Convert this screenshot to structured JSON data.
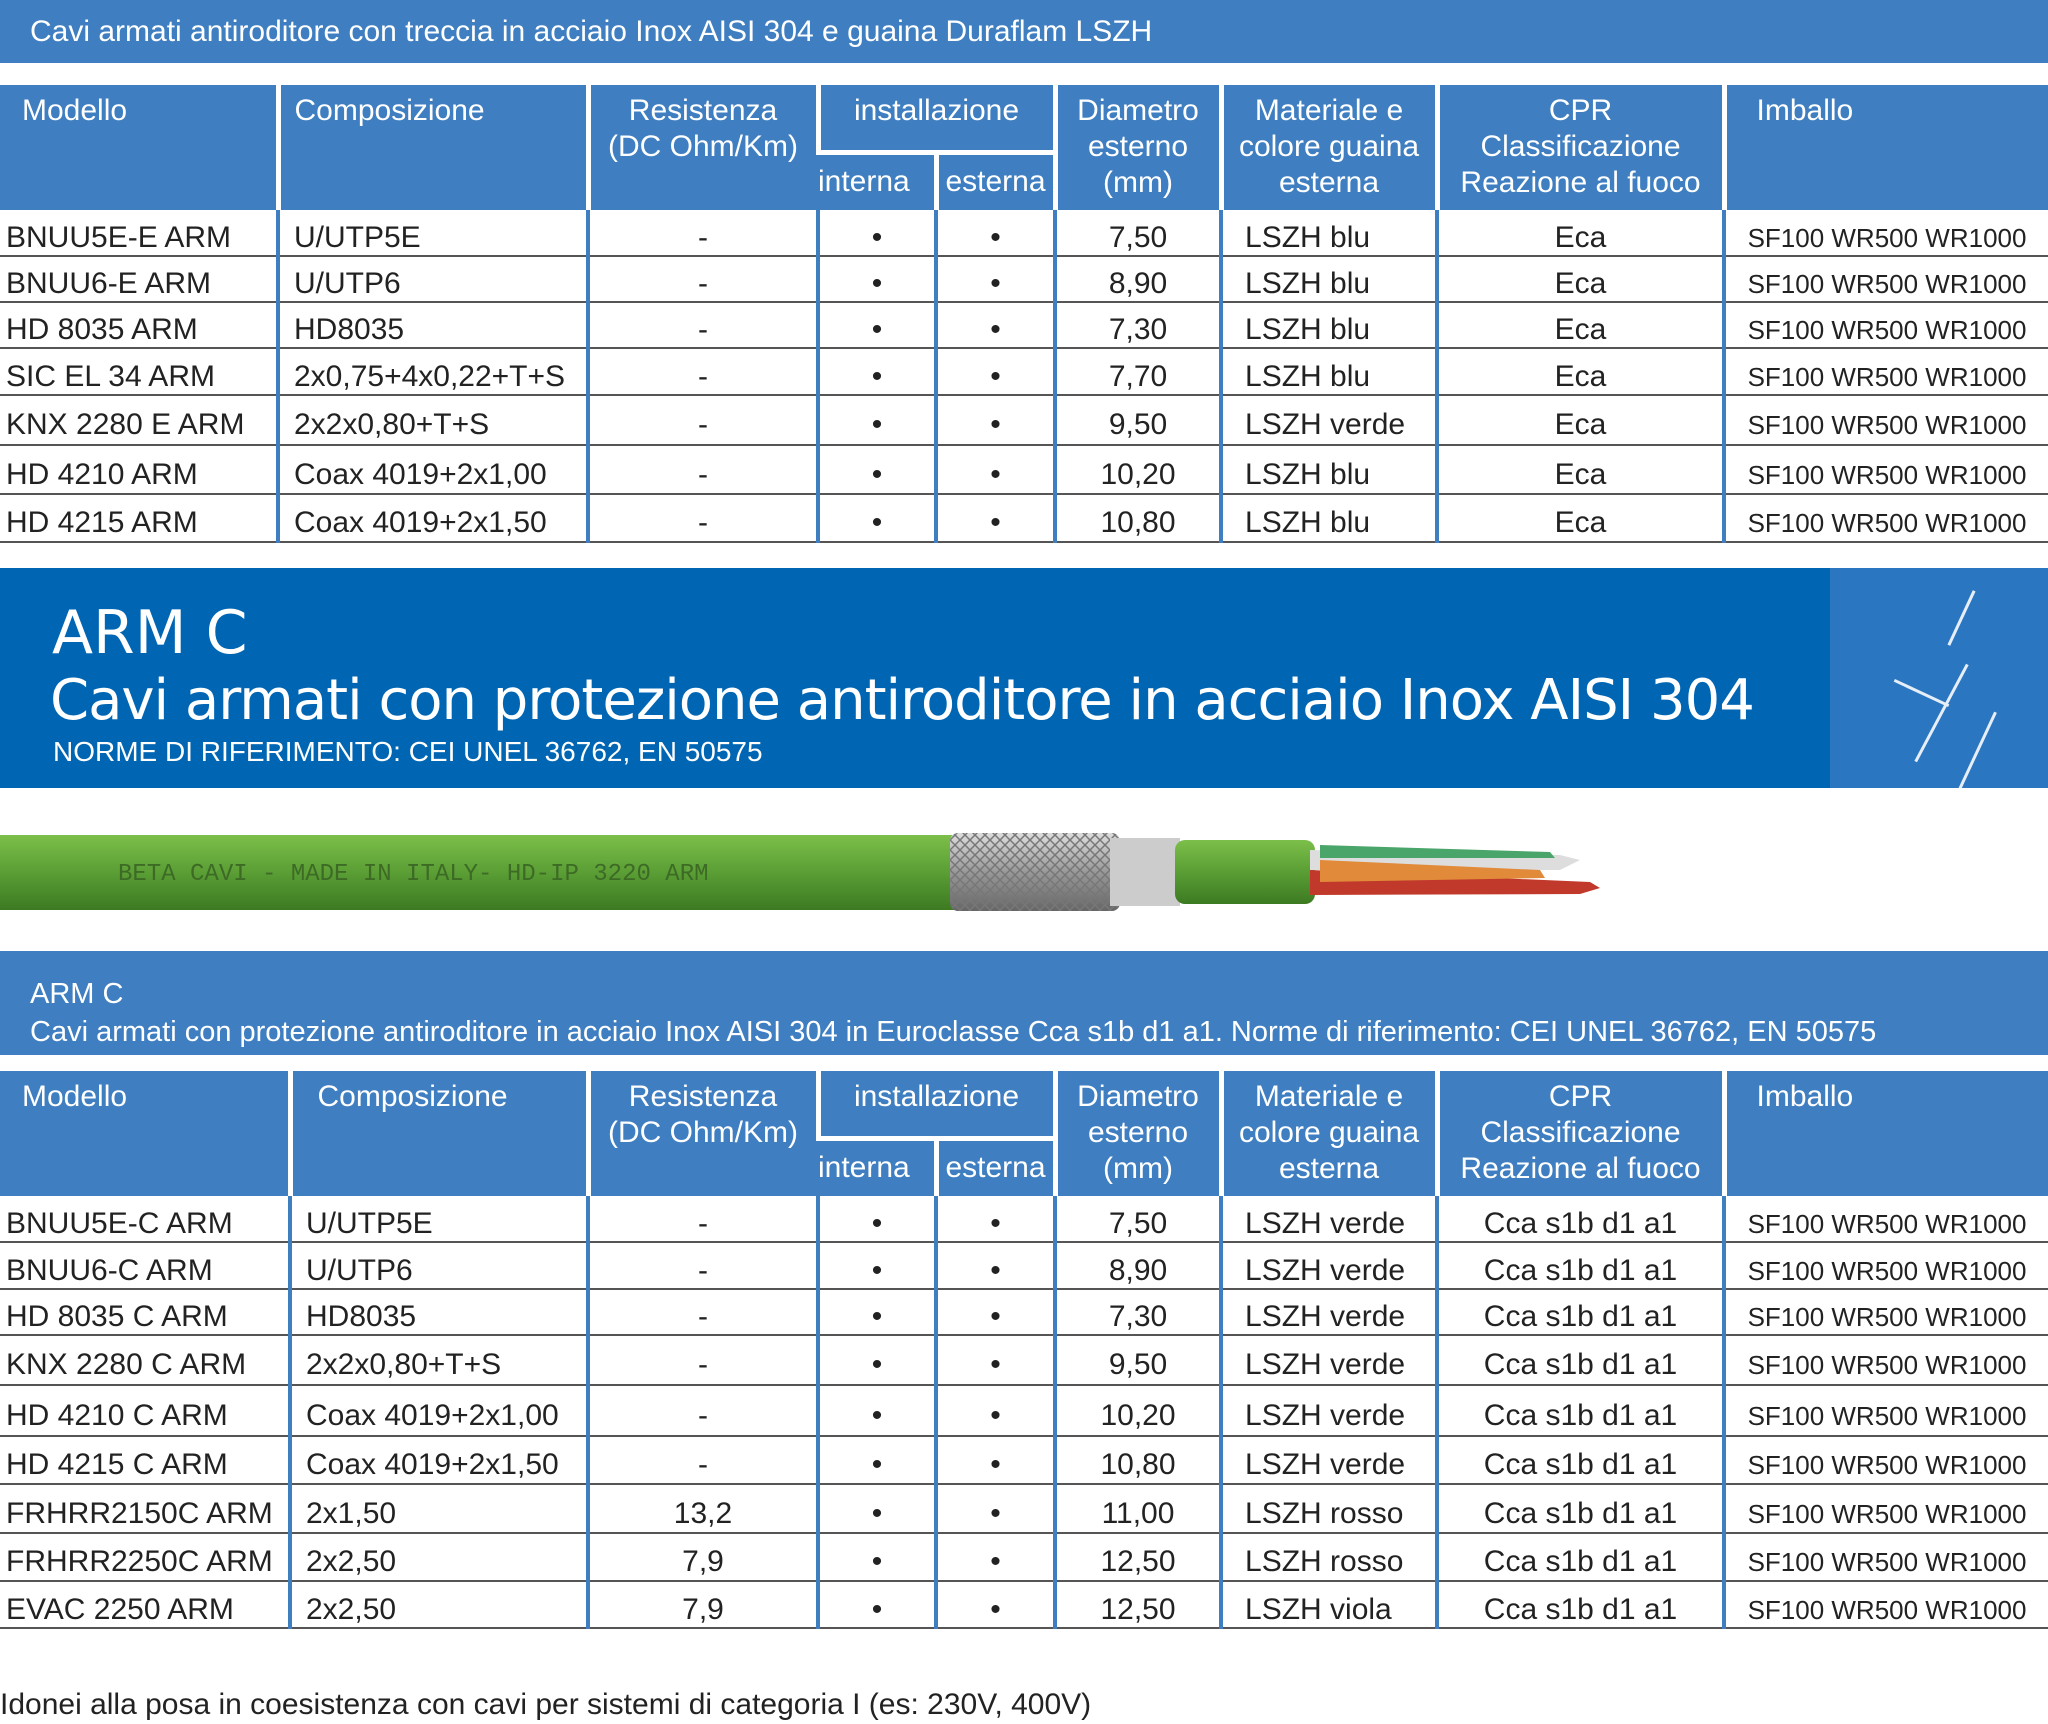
{
  "section1": {
    "title": "Cavi armati antiroditore con treccia in acciaio Inox AISI 304 e guaina Duraflam LSZH",
    "rows": [
      [
        "BNUU5E-E ARM",
        "U/UTP5E",
        "-",
        "•",
        "•",
        "7,50",
        "LSZH blu",
        "Eca",
        "SF100 WR500 WR1000"
      ],
      [
        "BNUU6-E ARM",
        "U/UTP6",
        "-",
        "•",
        "•",
        "8,90",
        "LSZH blu",
        "Eca",
        "SF100 WR500 WR1000"
      ],
      [
        "HD 8035 ARM",
        "HD8035",
        "-",
        "•",
        "•",
        "7,30",
        "LSZH blu",
        "Eca",
        "SF100 WR500 WR1000"
      ],
      [
        "SIC EL 34 ARM",
        "2x0,75+4x0,22+T+S",
        "-",
        "•",
        "•",
        "7,70",
        "LSZH blu",
        "Eca",
        "SF100 WR500 WR1000"
      ],
      [
        "KNX 2280 E ARM",
        "2x2x0,80+T+S",
        "-",
        "•",
        "•",
        "9,50",
        "LSZH verde",
        "Eca",
        "SF100 WR500 WR1000"
      ],
      [
        "HD 4210 ARM",
        "Coax 4019+2x1,00",
        "-",
        "•",
        "•",
        "10,20",
        "LSZH blu",
        "Eca",
        "SF100 WR500 WR1000"
      ],
      [
        "HD 4215 ARM",
        "Coax 4019+2x1,50",
        "-",
        "•",
        "•",
        "10,80",
        "LSZH blu",
        "Eca",
        "SF100 WR500 WR1000"
      ]
    ]
  },
  "headers": {
    "modello": "Modello",
    "composizione": "Composizione",
    "resistenza": "Resistenza",
    "resistenza_unit": "(DC Ohm/Km)",
    "installazione": "installazione",
    "interna": "interna",
    "esterna": "esterna",
    "diametro": "Diametro",
    "diametro_2": "esterno",
    "diametro_unit": "(mm)",
    "materiale": "Materiale e",
    "materiale_2": "colore guaina",
    "materiale_3": "esterna",
    "cpr": "CPR",
    "cpr_2": "Classificazione",
    "cpr_3": "Reazione al fuoco",
    "imballo": "Imballo"
  },
  "banner": {
    "model": "ARM C",
    "title": "Cavi armati con protezione antiroditore in acciaio Inox AISI 304",
    "norms": "NORME DI RIFERIMENTO: CEI UNEL 36762, EN 50575",
    "cable_print": "BETA CAVI - MADE IN ITALY- HD-IP 3220 ARM"
  },
  "section2": {
    "model": "ARM C",
    "title": "Cavi armati con protezione antiroditore in acciaio Inox AISI 304 in Euroclasse Cca s1b d1 a1. Norme di riferimento: CEI UNEL 36762, EN 50575",
    "rows": [
      [
        "BNUU5E-C ARM",
        "U/UTP5E",
        "-",
        "•",
        "•",
        "7,50",
        "LSZH verde",
        "Cca s1b d1 a1",
        "SF100 WR500 WR1000"
      ],
      [
        "BNUU6-C ARM",
        "U/UTP6",
        "-",
        "•",
        "•",
        "8,90",
        "LSZH verde",
        "Cca s1b d1 a1",
        "SF100 WR500 WR1000"
      ],
      [
        "HD 8035 C ARM",
        "HD8035",
        "-",
        "•",
        "•",
        "7,30",
        "LSZH verde",
        "Cca s1b d1 a1",
        "SF100 WR500 WR1000"
      ],
      [
        "KNX 2280 C ARM",
        "2x2x0,80+T+S",
        "-",
        "•",
        "•",
        "9,50",
        "LSZH verde",
        "Cca s1b d1 a1",
        "SF100 WR500 WR1000"
      ],
      [
        "HD 4210 C ARM",
        "Coax 4019+2x1,00",
        "-",
        "•",
        "•",
        "10,20",
        "LSZH verde",
        "Cca s1b d1 a1",
        "SF100 WR500 WR1000"
      ],
      [
        "HD 4215 C ARM",
        "Coax 4019+2x1,50",
        "-",
        "•",
        "•",
        "10,80",
        "LSZH verde",
        "Cca s1b d1 a1",
        "SF100 WR500 WR1000"
      ],
      [
        "FRHRR2150C ARM",
        "2x1,50",
        "13,2",
        "•",
        "•",
        "11,00",
        "LSZH rosso",
        "Cca s1b d1 a1",
        "SF100 WR500 WR1000"
      ],
      [
        "FRHRR2250C ARM",
        "2x2,50",
        "7,9",
        "•",
        "•",
        "12,50",
        "LSZH rosso",
        "Cca s1b d1 a1",
        "SF100 WR500 WR1000"
      ],
      [
        "EVAC 2250 ARM",
        "2x2,50",
        "7,9",
        "•",
        "•",
        "12,50",
        "LSZH viola",
        "Cca s1b d1 a1",
        "SF100 WR500 WR1000"
      ]
    ]
  },
  "footer": "Idonei alla posa in coesistenza con cavi per sistemi di categoria I (es: 230V, 400V)",
  "colors": {
    "header_blue": "#3f7fc1",
    "banner_blue": "#0066b3",
    "cable_green": "#5a9e35"
  }
}
